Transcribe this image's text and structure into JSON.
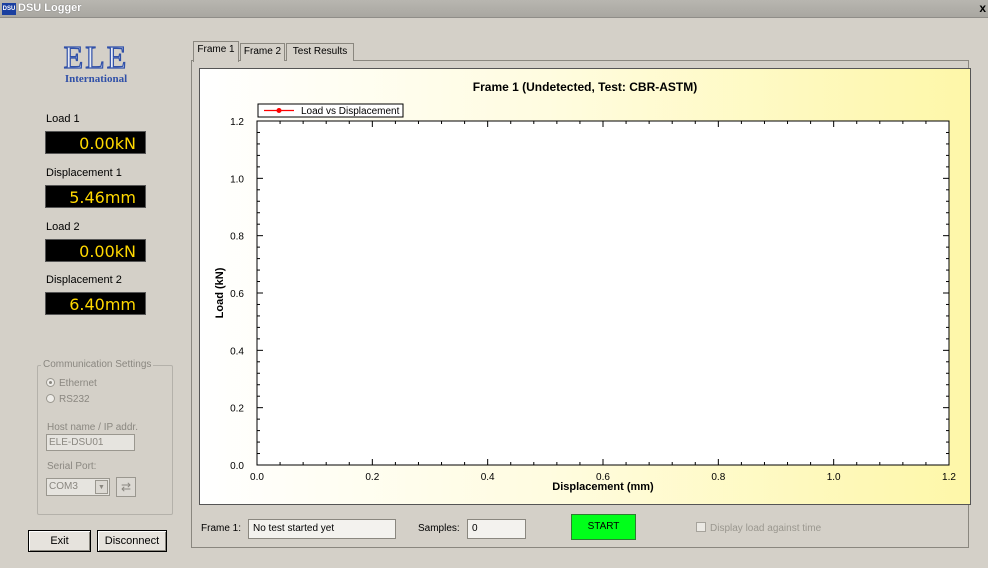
{
  "window": {
    "app_icon_text": "DSU",
    "title": "DSU Logger",
    "close_glyph": "x"
  },
  "logo": {
    "main": "ELE",
    "sub": "International"
  },
  "readouts": [
    {
      "label": "Load 1",
      "value": "0.00kN"
    },
    {
      "label": "Displacement 1",
      "value": "5.46mm"
    },
    {
      "label": "Load 2",
      "value": "0.00kN"
    },
    {
      "label": "Displacement 2",
      "value": "6.40mm"
    }
  ],
  "comm": {
    "title": "Communication Settings",
    "options": [
      {
        "label": "Ethernet",
        "selected": true
      },
      {
        "label": "RS232",
        "selected": false
      }
    ],
    "host_label": "Host name / IP addr.",
    "host_value": "ELE-DSU01",
    "serial_label": "Serial Port:",
    "serial_value": "COM3",
    "dropdown_glyph": "▼",
    "refresh_glyph": "⇄"
  },
  "buttons": {
    "exit": "Exit",
    "disconnect": "Disconnect",
    "start": "START"
  },
  "tabs": [
    "Frame 1",
    "Frame 2",
    "Test Results"
  ],
  "status": {
    "frame_label": "Frame 1:",
    "frame_value": "No test started yet",
    "samples_label": "Samples:",
    "samples_value": "0",
    "display_checkbox": "Display load against time"
  },
  "colors": {
    "readout_text": "#ffd800",
    "start_button": "#00ff1a",
    "series_line": "#ff0000"
  },
  "chart_data": {
    "type": "line",
    "title": "Frame 1 (Undetected, Test: CBR-ASTM)",
    "xlabel": "Displacement (mm)",
    "ylabel": "Load (kN)",
    "xlim": [
      0,
      1.2
    ],
    "ylim": [
      0,
      1.2
    ],
    "xticks": [
      "0.0",
      "0.2",
      "0.4",
      "0.6",
      "0.8",
      "1.0",
      "1.2"
    ],
    "yticks": [
      "0.0",
      "0.2",
      "0.4",
      "0.6",
      "0.8",
      "1.0",
      "1.2"
    ],
    "series": [
      {
        "name": "Load vs Displacement",
        "x": [],
        "y": []
      }
    ],
    "legend": "top-left",
    "grid": false
  }
}
